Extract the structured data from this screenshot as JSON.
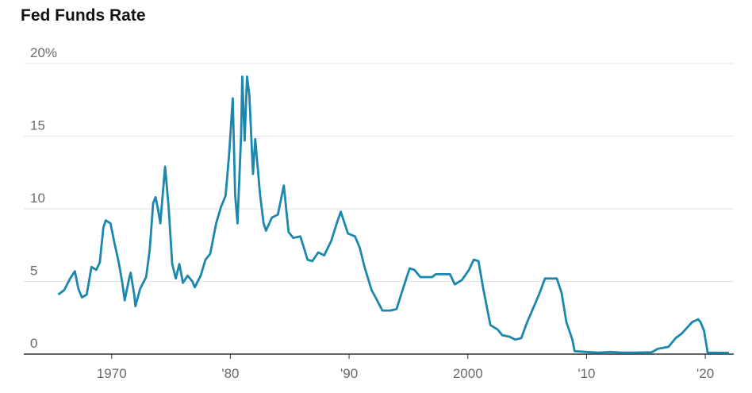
{
  "chart_data": {
    "type": "line",
    "title": "Fed Funds Rate",
    "x": [
      1965.5,
      1966.0,
      1966.5,
      1966.9,
      1967.2,
      1967.5,
      1967.9,
      1968.3,
      1968.7,
      1969.0,
      1969.3,
      1969.5,
      1969.9,
      1970.2,
      1970.6,
      1970.9,
      1971.1,
      1971.5,
      1971.6,
      1971.9,
      1972.0,
      1972.4,
      1972.9,
      1973.2,
      1973.5,
      1973.7,
      1973.9,
      1974.1,
      1974.5,
      1974.8,
      1975.1,
      1975.4,
      1975.7,
      1976.0,
      1976.4,
      1976.8,
      1977.0,
      1977.5,
      1977.9,
      1978.3,
      1978.8,
      1979.2,
      1979.6,
      1979.9,
      1980.2,
      1980.4,
      1980.6,
      1980.9,
      1981.0,
      1981.2,
      1981.4,
      1981.6,
      1981.9,
      1982.1,
      1982.5,
      1982.8,
      1983.0,
      1983.5,
      1984.0,
      1984.5,
      1984.9,
      1985.3,
      1985.9,
      1986.5,
      1986.9,
      1987.4,
      1987.9,
      1988.5,
      1989.0,
      1989.3,
      1989.9,
      1990.5,
      1990.9,
      1991.3,
      1991.9,
      1992.3,
      1992.8,
      1993.5,
      1994.0,
      1994.5,
      1995.1,
      1995.5,
      1996.0,
      1997.0,
      1997.3,
      1998.5,
      1998.9,
      1999.5,
      2000.1,
      2000.5,
      2000.9,
      2001.3,
      2001.9,
      2002.5,
      2002.9,
      2003.5,
      2004.0,
      2004.5,
      2005.0,
      2006.0,
      2006.5,
      2007.5,
      2007.9,
      2008.3,
      2008.8,
      2009.0,
      2010.0,
      2011.0,
      2012.0,
      2013.0,
      2014.0,
      2015.5,
      2016.0,
      2016.9,
      2017.5,
      2018.0,
      2018.9,
      2019.4,
      2019.6,
      2019.9,
      2020.2,
      2022.0
    ],
    "series": [
      {
        "color": "#1b87ad",
        "values": [
          4.1,
          4.4,
          5.2,
          5.7,
          4.5,
          3.9,
          4.1,
          6.0,
          5.8,
          6.3,
          8.7,
          9.2,
          9.0,
          7.8,
          6.3,
          4.9,
          3.7,
          5.3,
          5.6,
          4.1,
          3.3,
          4.5,
          5.3,
          7.1,
          10.4,
          10.8,
          10.0,
          9.0,
          12.9,
          10.1,
          6.2,
          5.2,
          6.2,
          4.9,
          5.4,
          5.0,
          4.6,
          5.4,
          6.5,
          6.9,
          9.0,
          10.1,
          10.9,
          13.8,
          17.6,
          11.0,
          9.0,
          15.0,
          19.1,
          14.7,
          19.1,
          17.8,
          12.4,
          14.8,
          11.0,
          9.0,
          8.5,
          9.4,
          9.6,
          11.6,
          8.4,
          8.0,
          8.1,
          6.5,
          6.4,
          7.0,
          6.8,
          7.8,
          9.1,
          9.8,
          8.3,
          8.1,
          7.3,
          6.0,
          4.4,
          3.8,
          3.0,
          3.0,
          3.1,
          4.4,
          5.9,
          5.8,
          5.3,
          5.3,
          5.5,
          5.5,
          4.8,
          5.1,
          5.8,
          6.5,
          6.4,
          4.5,
          2.0,
          1.7,
          1.3,
          1.2,
          1.0,
          1.1,
          2.2,
          4.1,
          5.2,
          5.2,
          4.2,
          2.2,
          1.0,
          0.2,
          0.15,
          0.1,
          0.15,
          0.1,
          0.1,
          0.13,
          0.36,
          0.5,
          1.1,
          1.4,
          2.2,
          2.4,
          2.2,
          1.6,
          0.1,
          0.08
        ]
      }
    ],
    "xlim": [
      1962.6,
      2022.4
    ],
    "xticks": [
      1970,
      {
        "value": 1980,
        "label": "'80"
      },
      {
        "value": 1990,
        "label": "'90"
      },
      2000,
      {
        "value": 2010,
        "label": "'10"
      },
      {
        "value": 2020,
        "label": "'20"
      }
    ],
    "ylim": [
      0,
      20
    ],
    "yticks": [
      0,
      5,
      10,
      15,
      {
        "value": 20,
        "label": "20%"
      }
    ],
    "grid": true
  }
}
